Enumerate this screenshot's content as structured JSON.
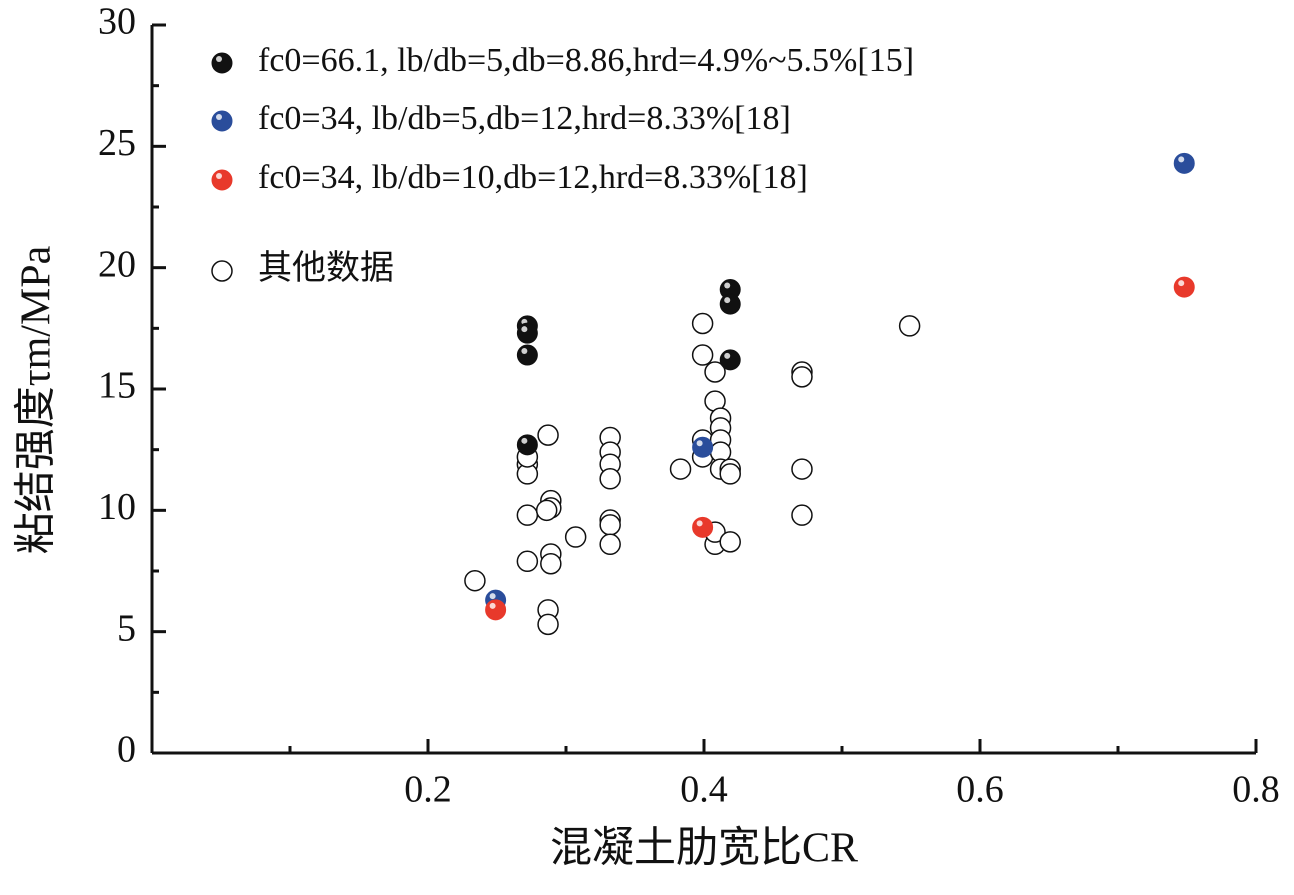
{
  "chart_data": {
    "type": "scatter",
    "xlabel": "混凝土肋宽比CR",
    "ylabel": "粘结强度τm/MPa",
    "xlim": [
      0,
      0.8
    ],
    "xticks": [
      0.2,
      0.4,
      0.6,
      0.8
    ],
    "xminorticks": [
      0.1,
      0.3,
      0.5,
      0.7
    ],
    "ylim": [
      0,
      30
    ],
    "yticks": [
      0,
      5,
      10,
      15,
      20,
      25,
      30
    ],
    "yminorticks": [
      2.5,
      7.5,
      12.5,
      17.5,
      22.5,
      27.5
    ],
    "legend": "upper left",
    "series": [
      {
        "name": "fc0=66.1, lb/db=5,db=8.86,hrd=4.9%~5.5%[15]",
        "color": "#111111",
        "filled": true,
        "x": [
          0.272,
          0.272,
          0.272,
          0.272,
          0.419,
          0.419,
          0.419
        ],
        "values": [
          17.6,
          17.3,
          16.4,
          12.7,
          19.1,
          18.5,
          16.2
        ]
      },
      {
        "name": "fc0=34, lb/db=5,db=12,hrd=8.33%[18]",
        "color": "#2a4d9b",
        "filled": true,
        "x": [
          0.249,
          0.399,
          0.748
        ],
        "values": [
          6.3,
          12.6,
          24.3
        ]
      },
      {
        "name": "fc0=34, lb/db=10,db=12,hrd=8.33%[18]",
        "color": "#e8392b",
        "filled": true,
        "x": [
          0.249,
          0.399,
          0.748
        ],
        "values": [
          5.9,
          9.3,
          19.2
        ]
      },
      {
        "name": "其他数据",
        "color": "#111111",
        "filled": false,
        "x": [
          0.234,
          0.272,
          0.272,
          0.272,
          0.272,
          0.272,
          0.287,
          0.289,
          0.289,
          0.286,
          0.289,
          0.289,
          0.287,
          0.287,
          0.307,
          0.332,
          0.332,
          0.332,
          0.332,
          0.332,
          0.332,
          0.332,
          0.383,
          0.399,
          0.399,
          0.399,
          0.399,
          0.408,
          0.408,
          0.408,
          0.412,
          0.412,
          0.412,
          0.412,
          0.412,
          0.408,
          0.419,
          0.419,
          0.419,
          0.471,
          0.471,
          0.471,
          0.471,
          0.549
        ],
        "values": [
          7.1,
          11.9,
          11.5,
          12.2,
          9.8,
          7.9,
          13.1,
          10.4,
          10.1,
          10.0,
          8.2,
          7.8,
          5.9,
          5.3,
          8.9,
          13.0,
          12.4,
          11.9,
          11.3,
          9.6,
          9.4,
          8.6,
          11.7,
          17.7,
          16.4,
          12.9,
          12.2,
          15.7,
          14.5,
          8.6,
          13.8,
          13.4,
          12.9,
          12.4,
          11.7,
          9.1,
          11.7,
          11.5,
          8.7,
          15.7,
          15.5,
          11.7,
          9.8,
          17.6
        ]
      }
    ]
  }
}
